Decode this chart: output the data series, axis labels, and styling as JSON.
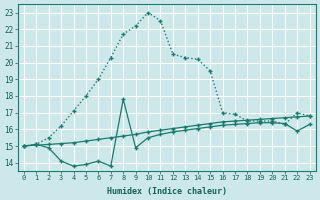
{
  "xlabel": "Humidex (Indice chaleur)",
  "background_color": "#cce8eb",
  "grid_color": "#b8d8db",
  "line_color": "#1a7a6e",
  "xlim": [
    -0.5,
    23.5
  ],
  "ylim": [
    13.5,
    23.5
  ],
  "xticks": [
    0,
    1,
    2,
    3,
    4,
    5,
    6,
    7,
    8,
    9,
    10,
    11,
    12,
    13,
    14,
    15,
    16,
    17,
    18,
    19,
    20,
    21,
    22,
    23
  ],
  "yticks": [
    14,
    15,
    16,
    17,
    18,
    19,
    20,
    21,
    22,
    23
  ],
  "line_humidex_x": [
    0,
    1,
    2,
    3,
    4,
    5,
    6,
    7,
    8,
    9,
    10,
    11,
    12,
    13,
    14,
    15,
    16,
    17,
    18,
    19,
    20,
    21,
    22,
    23
  ],
  "line_humidex_y": [
    15.0,
    15.1,
    15.5,
    16.2,
    17.1,
    18.0,
    19.0,
    20.3,
    21.7,
    22.2,
    23.0,
    22.5,
    20.5,
    20.3,
    20.2,
    19.5,
    17.0,
    16.9,
    16.5,
    16.5,
    16.5,
    16.3,
    17.0,
    16.8
  ],
  "line_upper_x": [
    0,
    1,
    2,
    3,
    4,
    5,
    6,
    7,
    8,
    9,
    10,
    11,
    12,
    13,
    14,
    15,
    16,
    17,
    18,
    19,
    20,
    21,
    22,
    23
  ],
  "line_upper_y": [
    15.0,
    15.05,
    15.1,
    15.15,
    15.2,
    15.3,
    15.4,
    15.5,
    15.6,
    15.7,
    15.85,
    15.95,
    16.05,
    16.15,
    16.25,
    16.35,
    16.45,
    16.5,
    16.55,
    16.6,
    16.65,
    16.7,
    16.75,
    16.8
  ],
  "line_lower_x": [
    0,
    1,
    2,
    3,
    4,
    5,
    6,
    7,
    8,
    9,
    10,
    11,
    12,
    13,
    14,
    15,
    16,
    17,
    18,
    19,
    20,
    21,
    22,
    23
  ],
  "line_lower_y": [
    15.0,
    15.1,
    14.9,
    14.1,
    13.8,
    13.9,
    14.1,
    13.8,
    17.8,
    14.9,
    15.5,
    15.7,
    15.85,
    15.95,
    16.05,
    16.15,
    16.25,
    16.3,
    16.35,
    16.4,
    16.4,
    16.35,
    15.9,
    16.3
  ]
}
